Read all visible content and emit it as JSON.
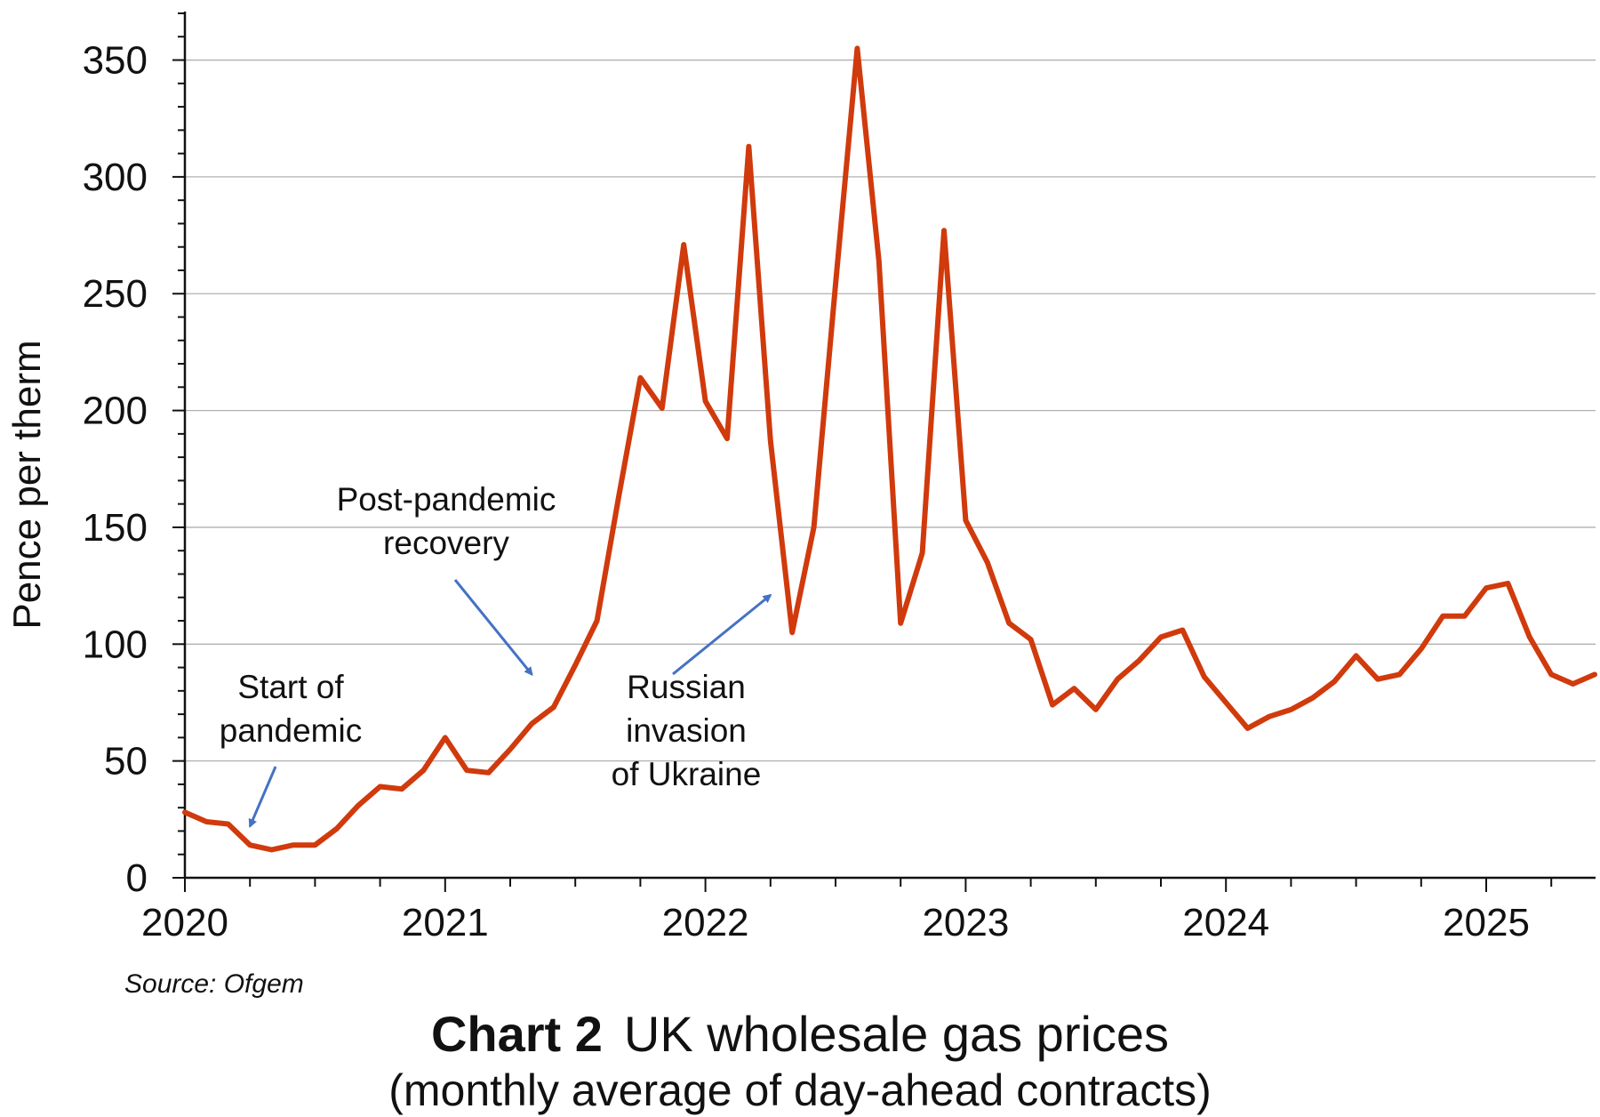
{
  "chart_data": {
    "type": "line",
    "title_label": "Chart 2",
    "title": "UK wholesale gas prices",
    "subtitle": "(monthly average of day-ahead contracts)",
    "source": "Source: Ofgem",
    "ylabel": "Pence per therm",
    "xlabel": "",
    "ylim": [
      0,
      370
    ],
    "yticks": [
      0,
      50,
      100,
      150,
      200,
      250,
      300,
      350
    ],
    "xlim": [
      "2020-01",
      "2025-06"
    ],
    "xticks": [
      "2020",
      "2021",
      "2022",
      "2023",
      "2024",
      "2025"
    ],
    "grid": "horizontal",
    "line_color": "#d03a0c",
    "annotation_arrow_color": "#4472c4",
    "series": [
      {
        "values": [
          {
            "x": "2020-01",
            "y": 28
          },
          {
            "x": "2020-02",
            "y": 24
          },
          {
            "x": "2020-03",
            "y": 23
          },
          {
            "x": "2020-04",
            "y": 14
          },
          {
            "x": "2020-05",
            "y": 12
          },
          {
            "x": "2020-06",
            "y": 14
          },
          {
            "x": "2020-07",
            "y": 14
          },
          {
            "x": "2020-08",
            "y": 21
          },
          {
            "x": "2020-09",
            "y": 31
          },
          {
            "x": "2020-10",
            "y": 39
          },
          {
            "x": "2020-11",
            "y": 38
          },
          {
            "x": "2020-12",
            "y": 46
          },
          {
            "x": "2021-01",
            "y": 60
          },
          {
            "x": "2021-02",
            "y": 46
          },
          {
            "x": "2021-03",
            "y": 45
          },
          {
            "x": "2021-04",
            "y": 55
          },
          {
            "x": "2021-05",
            "y": 66
          },
          {
            "x": "2021-06",
            "y": 73
          },
          {
            "x": "2021-07",
            "y": 91
          },
          {
            "x": "2021-08",
            "y": 110
          },
          {
            "x": "2021-09",
            "y": 163
          },
          {
            "x": "2021-10",
            "y": 214
          },
          {
            "x": "2021-11",
            "y": 201
          },
          {
            "x": "2021-12",
            "y": 271
          },
          {
            "x": "2022-01",
            "y": 204
          },
          {
            "x": "2022-02",
            "y": 188
          },
          {
            "x": "2022-03",
            "y": 313
          },
          {
            "x": "2022-04",
            "y": 187
          },
          {
            "x": "2022-05",
            "y": 105
          },
          {
            "x": "2022-06",
            "y": 150
          },
          {
            "x": "2022-07",
            "y": 254
          },
          {
            "x": "2022-08",
            "y": 355
          },
          {
            "x": "2022-09",
            "y": 264
          },
          {
            "x": "2022-10",
            "y": 109
          },
          {
            "x": "2022-11",
            "y": 139
          },
          {
            "x": "2022-12",
            "y": 277
          },
          {
            "x": "2023-01",
            "y": 153
          },
          {
            "x": "2023-02",
            "y": 135
          },
          {
            "x": "2023-03",
            "y": 109
          },
          {
            "x": "2023-04",
            "y": 102
          },
          {
            "x": "2023-05",
            "y": 74
          },
          {
            "x": "2023-06",
            "y": 81
          },
          {
            "x": "2023-07",
            "y": 72
          },
          {
            "x": "2023-08",
            "y": 85
          },
          {
            "x": "2023-09",
            "y": 93
          },
          {
            "x": "2023-10",
            "y": 103
          },
          {
            "x": "2023-11",
            "y": 106
          },
          {
            "x": "2023-12",
            "y": 86
          },
          {
            "x": "2024-01",
            "y": 75
          },
          {
            "x": "2024-02",
            "y": 64
          },
          {
            "x": "2024-03",
            "y": 69
          },
          {
            "x": "2024-04",
            "y": 72
          },
          {
            "x": "2024-05",
            "y": 77
          },
          {
            "x": "2024-06",
            "y": 84
          },
          {
            "x": "2024-07",
            "y": 95
          },
          {
            "x": "2024-08",
            "y": 85
          },
          {
            "x": "2024-09",
            "y": 87
          },
          {
            "x": "2024-10",
            "y": 98
          },
          {
            "x": "2024-11",
            "y": 112
          },
          {
            "x": "2024-12",
            "y": 112
          },
          {
            "x": "2025-01",
            "y": 124
          },
          {
            "x": "2025-02",
            "y": 126
          },
          {
            "x": "2025-03",
            "y": 103
          },
          {
            "x": "2025-04",
            "y": 87
          },
          {
            "x": "2025-05",
            "y": 83
          },
          {
            "x": "2025-06",
            "y": 87
          }
        ]
      }
    ],
    "annotations": [
      {
        "name": "annotation-start-of-pandemic",
        "lines": [
          "Start of",
          "pandemic"
        ],
        "target": {
          "x": "2020-04",
          "y": 22
        }
      },
      {
        "name": "annotation-post-pandemic-recovery",
        "lines": [
          "Post-pandemic",
          "recovery"
        ],
        "target": {
          "x": "2021-05",
          "y": 87
        }
      },
      {
        "name": "annotation-russian-invasion",
        "lines": [
          "Russian",
          "invasion",
          "of Ukraine"
        ],
        "target": {
          "x": "2022-04",
          "y": 121
        }
      }
    ]
  }
}
